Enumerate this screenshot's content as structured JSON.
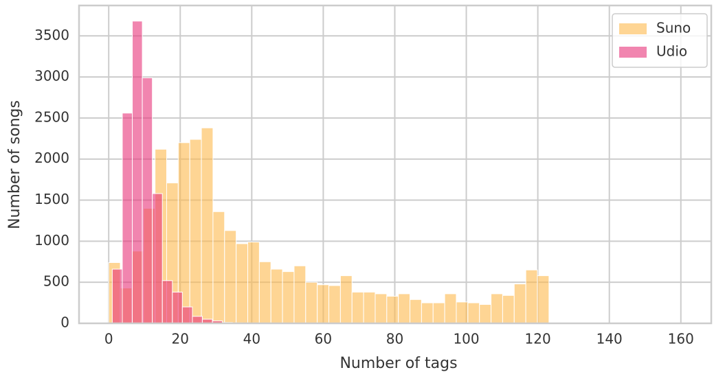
{
  "chart_data": {
    "type": "histogram",
    "xlabel": "Number of tags",
    "ylabel": "Number of songs",
    "xlim": [
      -8.3,
      168.5
    ],
    "ylim": [
      0,
      3870
    ],
    "xticks": [
      0,
      20,
      40,
      60,
      80,
      100,
      120,
      140,
      160
    ],
    "yticks": [
      0,
      500,
      1000,
      1500,
      2000,
      2500,
      3000,
      3500
    ],
    "grid": true,
    "legend": "upper right",
    "alpha": 0.6,
    "series": [
      {
        "name": "Suno",
        "color": "#fdb94d",
        "bins": [
          0,
          3.24,
          6.48,
          9.72,
          12.96,
          16.2,
          19.44,
          22.68,
          25.92,
          29.16,
          32.4,
          35.64,
          38.88,
          42.12,
          45.36,
          48.6,
          51.84,
          55.08,
          58.32,
          61.56,
          64.8,
          68.04,
          71.28,
          74.52,
          77.76,
          81,
          84.24,
          87.48,
          90.72,
          93.96,
          97.2,
          100.44,
          103.68,
          106.92,
          110.16,
          113.4,
          116.64,
          119.88,
          123.12,
          126.36,
          129.6,
          132.84,
          136.08,
          139.32,
          142.56,
          145.8,
          149.04,
          152.28,
          155.52,
          158.76,
          162
        ],
        "values": [
          740,
          430,
          880,
          1400,
          2120,
          1710,
          2200,
          2240,
          2380,
          1360,
          1130,
          970,
          990,
          750,
          660,
          630,
          700,
          500,
          470,
          460,
          580,
          380,
          380,
          360,
          330,
          360,
          290,
          250,
          250,
          360,
          260,
          250,
          230,
          360,
          340,
          480,
          650,
          580,
          10,
          5,
          5,
          3,
          3,
          2,
          2,
          2,
          1,
          1,
          1,
          1
        ]
      },
      {
        "name": "Udio",
        "color": "#e8347a",
        "bins": [
          1,
          3.8,
          6.6,
          9.4,
          12.2,
          15,
          17.8,
          20.6,
          23.4,
          26.2,
          29,
          31.8,
          34.6,
          37.4,
          40.2,
          43,
          45.8,
          48.6,
          51.4,
          54.2,
          57
        ],
        "values": [
          660,
          2560,
          3680,
          2990,
          1580,
          520,
          380,
          200,
          85,
          50,
          30,
          10,
          5,
          3,
          2,
          1,
          1,
          1,
          0,
          0
        ]
      }
    ]
  }
}
